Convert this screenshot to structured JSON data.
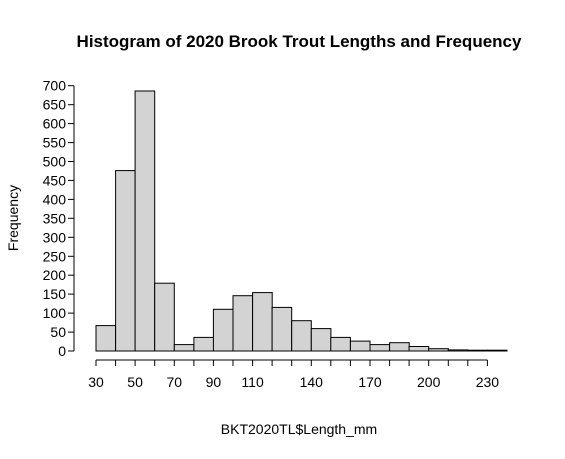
{
  "chart_data": {
    "type": "bar",
    "title": "Histogram of 2020 Brook Trout Lengths and Frequency",
    "xlabel": "BKT2020TL$Length_mm",
    "ylabel": "Frequency",
    "bin_width": 10,
    "bins": [
      {
        "start": 30,
        "end": 40,
        "value": 67
      },
      {
        "start": 40,
        "end": 50,
        "value": 476
      },
      {
        "start": 50,
        "end": 60,
        "value": 686
      },
      {
        "start": 60,
        "end": 70,
        "value": 179
      },
      {
        "start": 70,
        "end": 80,
        "value": 17
      },
      {
        "start": 80,
        "end": 90,
        "value": 36
      },
      {
        "start": 90,
        "end": 100,
        "value": 110
      },
      {
        "start": 100,
        "end": 110,
        "value": 146
      },
      {
        "start": 110,
        "end": 120,
        "value": 154
      },
      {
        "start": 120,
        "end": 130,
        "value": 115
      },
      {
        "start": 130,
        "end": 140,
        "value": 80
      },
      {
        "start": 140,
        "end": 150,
        "value": 59
      },
      {
        "start": 150,
        "end": 160,
        "value": 36
      },
      {
        "start": 160,
        "end": 170,
        "value": 26
      },
      {
        "start": 170,
        "end": 180,
        "value": 17
      },
      {
        "start": 180,
        "end": 190,
        "value": 22
      },
      {
        "start": 190,
        "end": 200,
        "value": 12
      },
      {
        "start": 200,
        "end": 210,
        "value": 6
      },
      {
        "start": 210,
        "end": 220,
        "value": 3
      },
      {
        "start": 220,
        "end": 230,
        "value": 2
      },
      {
        "start": 230,
        "end": 240,
        "value": 2
      }
    ],
    "xlim": [
      30,
      240
    ],
    "ylim": [
      0,
      700
    ],
    "x_ticks": [
      30,
      40,
      50,
      60,
      70,
      80,
      90,
      100,
      110,
      120,
      130,
      140,
      150,
      160,
      170,
      180,
      190,
      200,
      210,
      220,
      230
    ],
    "x_tick_labels": [
      "30",
      "50",
      "70",
      "90",
      "110",
      "140",
      "170",
      "200",
      "230"
    ],
    "y_ticks": [
      0,
      50,
      100,
      150,
      200,
      250,
      300,
      350,
      400,
      450,
      500,
      550,
      600,
      650,
      700
    ],
    "y_tick_labels": [
      "0",
      "50",
      "100",
      "150",
      "200",
      "250",
      "300",
      "350",
      "400",
      "450",
      "500",
      "550",
      "600",
      "650",
      "700"
    ],
    "grid": false,
    "colors": {
      "bar_fill": "#d3d3d3",
      "bar_stroke": "#000000"
    }
  }
}
